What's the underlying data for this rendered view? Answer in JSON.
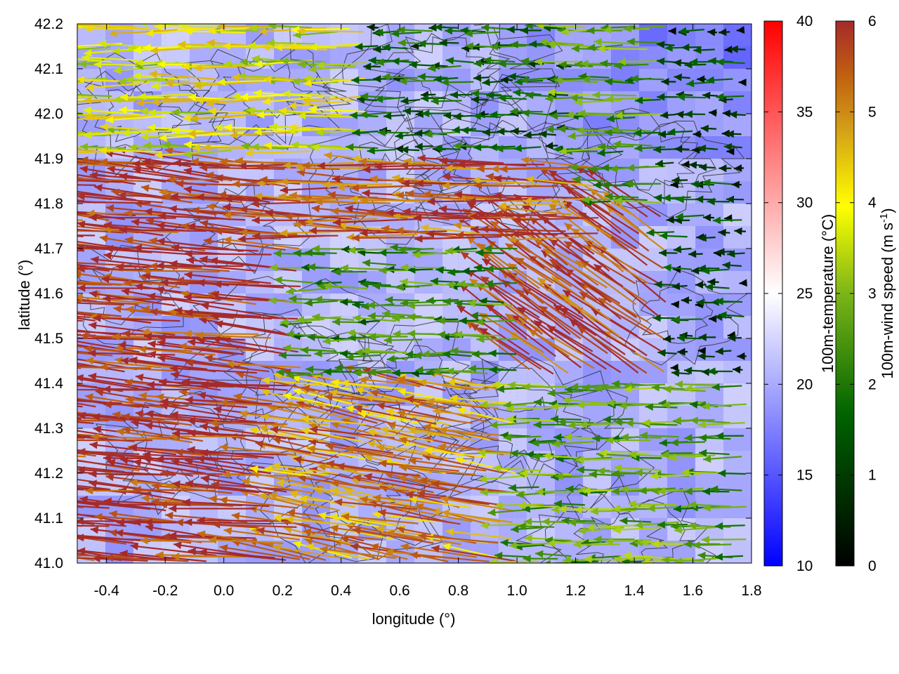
{
  "chart_data": {
    "type": "heatmap",
    "overlay": "wind vectors (arrows) and terrain contour lines",
    "xlabel": "longitude (°)",
    "ylabel": "latitude (°)",
    "xlim": [
      -0.5,
      1.8
    ],
    "ylim": [
      41.0,
      42.2
    ],
    "x_ticks": [
      "-0.4",
      "-0.2",
      "0.0",
      "0.2",
      "0.4",
      "0.6",
      "0.8",
      "1.0",
      "1.2",
      "1.4",
      "1.6",
      "1.8"
    ],
    "y_ticks": [
      "41.0",
      "41.1",
      "41.2",
      "41.3",
      "41.4",
      "41.5",
      "41.6",
      "41.7",
      "41.8",
      "41.9",
      "42.0",
      "42.1",
      "42.2"
    ],
    "grid": true,
    "colorbars": [
      {
        "label": "100m-temperature (°C)",
        "range": [
          10,
          40
        ],
        "ticks": [
          "10",
          "15",
          "20",
          "25",
          "30",
          "35",
          "40"
        ],
        "colors": [
          "#0000ff",
          "#ffffff",
          "#ff0000"
        ]
      },
      {
        "label_main": "100m-wind speed (m s",
        "label_sup": "-1",
        "label_close": ")",
        "range": [
          0,
          6
        ],
        "ticks": [
          "0",
          "1",
          "2",
          "3",
          "4",
          "5",
          "6"
        ],
        "colors": [
          "#000000",
          "#006400",
          "#7cb518",
          "#ffff00",
          "#d4a017",
          "#c06010",
          "#a52a2a"
        ]
      }
    ],
    "wind_field": {
      "description": "westward-pointing wind arrows; strong (~6 m/s) in west and central band, weak (1–3 m/s) in east and north",
      "regions": [
        {
          "name": "west",
          "lon": [
            -0.5,
            0.3
          ],
          "lat": [
            41.0,
            41.9
          ],
          "speed": 6.0,
          "direction_deg": 175
        },
        {
          "name": "central-band",
          "lon": [
            0.3,
            1.3
          ],
          "lat": [
            41.7,
            41.9
          ],
          "speed": 5.5,
          "direction_deg": 178
        },
        {
          "name": "northwest",
          "lon": [
            -0.5,
            0.5
          ],
          "lat": [
            41.9,
            42.2
          ],
          "speed": 3.8,
          "direction_deg": 180
        },
        {
          "name": "north-center",
          "lon": [
            0.5,
            1.2
          ],
          "lat": [
            41.9,
            42.2
          ],
          "speed": 1.5,
          "direction_deg": 180
        },
        {
          "name": "center",
          "lon": [
            0.3,
            1.0
          ],
          "lat": [
            41.4,
            41.7
          ],
          "speed": 2.2,
          "direction_deg": 180
        },
        {
          "name": "southwest-center",
          "lon": [
            0.3,
            1.0
          ],
          "lat": [
            41.0,
            41.4
          ],
          "speed": 5.0,
          "direction_deg": 170
        },
        {
          "name": "diagonal",
          "lon": [
            1.0,
            1.5
          ],
          "lat": [
            41.4,
            41.8
          ],
          "speed": 5.8,
          "direction_deg": 145
        },
        {
          "name": "southeast",
          "lon": [
            1.0,
            1.8
          ],
          "lat": [
            41.0,
            41.4
          ],
          "speed": 2.6,
          "direction_deg": 180
        },
        {
          "name": "east",
          "lon": [
            1.5,
            1.8
          ],
          "lat": [
            41.4,
            42.2
          ],
          "speed": 1.0,
          "direction_deg": 180
        }
      ]
    },
    "temperature_field": {
      "description": "mostly 17–23 °C; cooler (~14 °C) in the northeast corner",
      "typical": 20,
      "min": 14,
      "max": 24
    }
  }
}
